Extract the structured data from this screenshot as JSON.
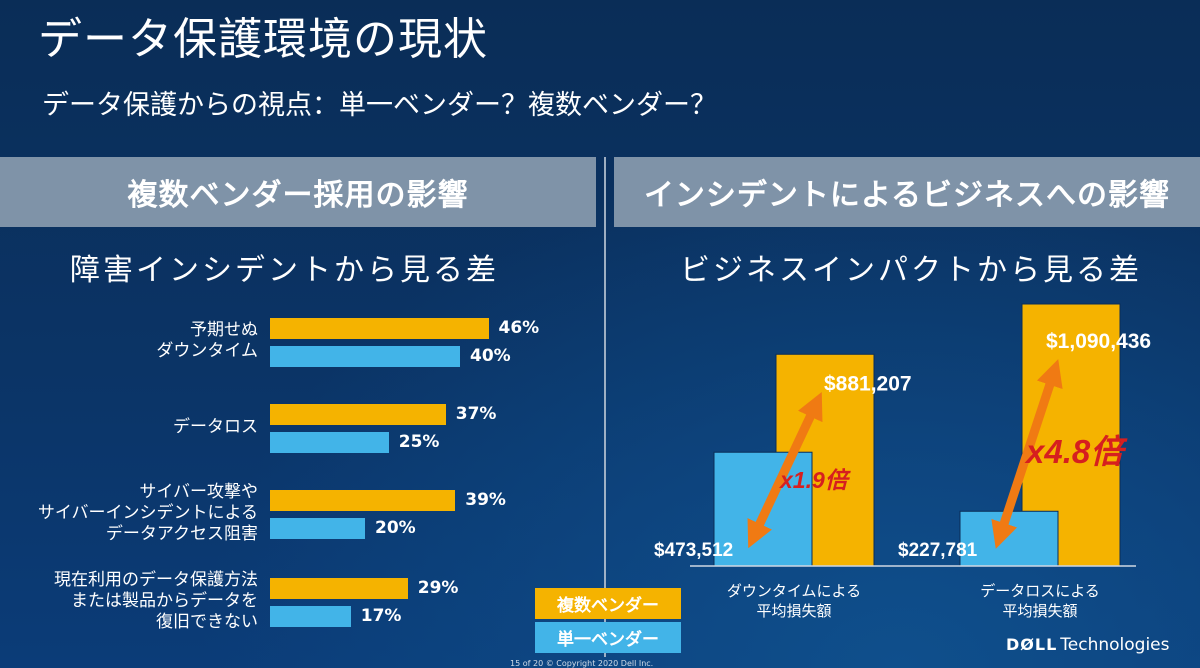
{
  "title": "データ保護環境の現状",
  "subtitle": "データ保護からの視点：単一ベンダー？複数ベンダー？",
  "left_panel": {
    "header": "複数ベンダー採用の影響",
    "chart_title": "障害インシデントから見る差"
  },
  "right_panel": {
    "header": "インシデントによるビジネスへの影響",
    "chart_title": "ビジネスインパクトから見る差"
  },
  "legend": {
    "multi": "複数ベンダー",
    "single": "単一ベンダー"
  },
  "colors": {
    "multi": "#f5b300",
    "single": "#42b4e8",
    "arrow": "#f07a13",
    "multiplier": "#d61f1f"
  },
  "chart_data": [
    {
      "type": "bar",
      "orientation": "horizontal",
      "categories": [
        "予期せぬ\nダウンタイム",
        "データロス",
        "サイバー攻撃や\nサイバーインシデントによる\nデータアクセス阻害",
        "現在利用のデータ保護方法\nまたは製品からデータを\n復旧できない"
      ],
      "series": [
        {
          "name": "複数ベンダー",
          "values": [
            46,
            37,
            39,
            29
          ],
          "labels": [
            "46%",
            "37%",
            "39%",
            "29%"
          ]
        },
        {
          "name": "単一ベンダー",
          "values": [
            40,
            25,
            20,
            17
          ],
          "labels": [
            "40%",
            "25%",
            "20%",
            "17%"
          ]
        }
      ],
      "title": "障害インシデントから見る差"
    },
    {
      "type": "bar",
      "categories": [
        "ダウンタイムによる\n平均損失額",
        "データロスによる\n平均損失額"
      ],
      "series": [
        {
          "name": "単一ベンダー",
          "values": [
            473512,
            227781
          ],
          "labels": [
            "$473,512",
            "$227,781"
          ]
        },
        {
          "name": "複数ベンダー",
          "values": [
            881207,
            1090436
          ],
          "labels": [
            "$881,207",
            "$1,090,436"
          ]
        }
      ],
      "multipliers": [
        "x1.9倍",
        "x4.8倍"
      ],
      "title": "ビジネスインパクトから見る差"
    }
  ],
  "brand": {
    "dell": "DØLL",
    "technologies": "Technologies"
  },
  "footer": "15 of 20    © Copyright 2020 Dell Inc."
}
